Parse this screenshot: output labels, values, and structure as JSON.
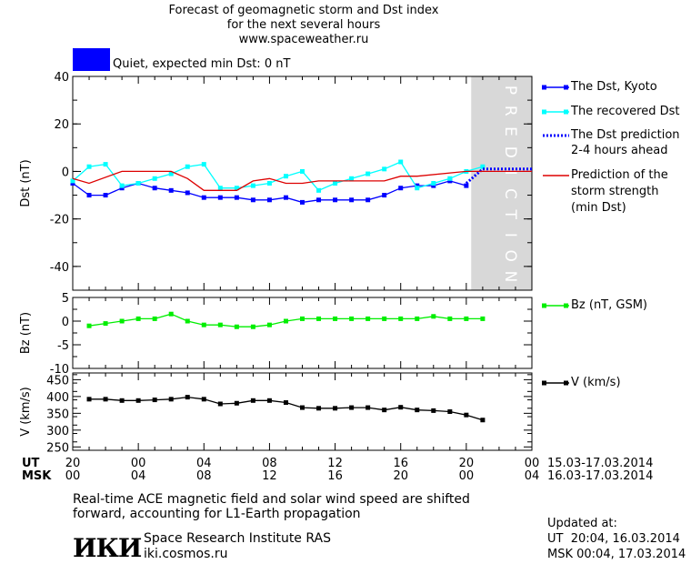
{
  "header": {
    "title_line1": "Forecast of geomagnetic storm and Dst index",
    "title_line2": "for the next several hours",
    "site": "www.spaceweather.ru",
    "status_label": "Quiet, expected min Dst: 0 nT",
    "status_color": "#0000ff"
  },
  "prediction_zone_label": "PREDICTION",
  "chart_data": [
    {
      "type": "line",
      "ylabel": "Dst (nT)",
      "ylim": [
        -50,
        40
      ],
      "yticks": [
        40,
        20,
        0,
        -20,
        -40
      ],
      "x_hours": [
        0,
        1,
        2,
        3,
        4,
        5,
        6,
        7,
        8,
        9,
        10,
        11,
        12,
        13,
        14,
        15,
        16,
        17,
        18,
        19,
        20,
        21,
        22,
        23,
        24,
        25
      ],
      "series": [
        {
          "name": "The Dst, Kyoto",
          "color": "#0000ff",
          "x": [
            0,
            1,
            2,
            3,
            4,
            5,
            6,
            7,
            8,
            9,
            10,
            11,
            12,
            13,
            14,
            15,
            16,
            17,
            18,
            19,
            20,
            21,
            22,
            23,
            24,
            25
          ],
          "y": [
            -5,
            -10,
            -10,
            -7,
            -5,
            -7,
            -8,
            -9,
            -11,
            -11,
            -11,
            -12,
            -12,
            -11,
            -13,
            -12,
            -12,
            -12,
            -12,
            -10,
            -7,
            -6,
            -6,
            -4,
            -6,
            null
          ]
        },
        {
          "name": "The recovered Dst",
          "color": "#00ffff",
          "x": [
            0,
            1,
            2,
            3,
            4,
            5,
            6,
            7,
            8,
            9,
            10,
            11,
            12,
            13,
            14,
            15,
            16,
            17,
            18,
            19,
            20,
            21,
            22,
            23,
            24,
            25
          ],
          "y": [
            -4,
            2,
            3,
            -6,
            -5,
            -3,
            -1,
            2,
            3,
            -7,
            -7,
            -6,
            -5,
            -2,
            0,
            -8,
            -5,
            -3,
            -1,
            1,
            4,
            -7,
            -5,
            -3,
            0,
            2
          ]
        },
        {
          "name": "The Dst prediction 2-4 hours ahead",
          "color": "#0000ff",
          "x": [
            24,
            25,
            26,
            27,
            28
          ],
          "y": [
            -5,
            1,
            1,
            1,
            1
          ]
        },
        {
          "name": "Prediction of the storm strength (min Dst)",
          "color": "#dd0000",
          "x": [
            0,
            1,
            3,
            4,
            6,
            7,
            8,
            10,
            11,
            12,
            13,
            14,
            15,
            16,
            19,
            20,
            21,
            24,
            28
          ],
          "y": [
            -3,
            -5,
            0,
            0,
            0,
            -3,
            -8,
            -8,
            -4,
            -3,
            -5,
            -5,
            -4,
            -4,
            -4,
            -2,
            -2,
            0,
            0
          ]
        }
      ]
    },
    {
      "type": "line",
      "ylabel": "Bz (nT)",
      "ylim": [
        -10,
        5
      ],
      "yticks": [
        5,
        0,
        -5,
        -10
      ],
      "series": [
        {
          "name": "Bz (nT, GSM)",
          "color": "#00ee00",
          "x": [
            1,
            2,
            3,
            4,
            5,
            6,
            7,
            8,
            9,
            10,
            11,
            12,
            13,
            14,
            15,
            16,
            17,
            18,
            19,
            20,
            21,
            22,
            23,
            24,
            25
          ],
          "y": [
            -1,
            -0.5,
            0,
            0.5,
            0.5,
            1.5,
            0,
            -0.8,
            -0.8,
            -1.2,
            -1.2,
            -0.8,
            0,
            0.5,
            0.5,
            0.5,
            0.5,
            0.5,
            0.5,
            0.5,
            0.5,
            1,
            0.5,
            0.5,
            0.5
          ]
        }
      ]
    },
    {
      "type": "line",
      "ylabel": "V (km/s)",
      "ylim": [
        240,
        470
      ],
      "yticks": [
        450,
        400,
        350,
        300,
        250
      ],
      "series": [
        {
          "name": "V (km/s)",
          "color": "#000000",
          "x": [
            1,
            2,
            3,
            4,
            5,
            6,
            7,
            8,
            9,
            10,
            11,
            12,
            13,
            14,
            15,
            16,
            17,
            18,
            19,
            20,
            21,
            22,
            23,
            24,
            25
          ],
          "y": [
            392,
            392,
            388,
            388,
            390,
            392,
            398,
            392,
            378,
            380,
            388,
            388,
            382,
            367,
            365,
            365,
            367,
            367,
            360,
            368,
            360,
            358,
            355,
            345,
            330
          ]
        }
      ]
    }
  ],
  "x_axis": {
    "ut_label": "UT",
    "msk_label": "MSK",
    "ut_ticks": [
      "20",
      "00",
      "04",
      "08",
      "12",
      "16",
      "20",
      "00"
    ],
    "msk_ticks": [
      "00",
      "04",
      "08",
      "12",
      "16",
      "20",
      "00",
      "04"
    ],
    "ut_range": "15.03-17.03.2014",
    "msk_range": "16.03-17.03.2014"
  },
  "legend": {
    "dst_kyoto": "The Dst, Kyoto",
    "recovered": "The recovered Dst",
    "prediction_line1": "The Dst prediction",
    "prediction_line2": "2-4 hours ahead",
    "storm_line1": "Prediction of the",
    "storm_line2": "storm strength",
    "storm_line3": "(min Dst)",
    "bz": "Bz (nT, GSM)",
    "v": "V (km/s)"
  },
  "footer": {
    "note_line1": "Real-time ACE magnetic field and solar wind speed are shifted",
    "note_line2": "forward, accounting for L1-Earth propagation",
    "logo_text": "ИКИ",
    "institute": "Space Research Institute RAS",
    "site": "iki.cosmos.ru",
    "updated_label": "Updated at:",
    "updated_ut": "UT  20:04, 16.03.2014",
    "updated_msk": "MSK 00:04, 17.03.2014"
  }
}
